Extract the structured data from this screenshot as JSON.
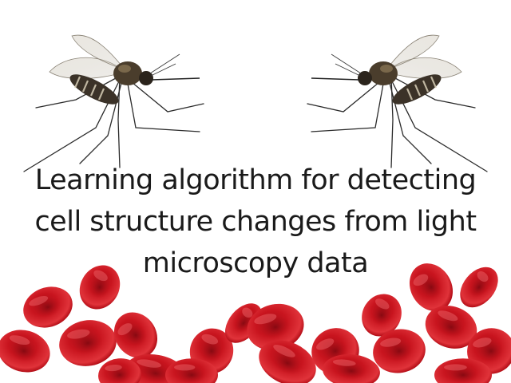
{
  "slide": {
    "title_lines": [
      "Learning algorithm for detecting",
      "cell structure changes from light",
      "microscopy data"
    ]
  },
  "images": {
    "left": "mosquito-left",
    "right": "mosquito-right",
    "bottom": "red-blood-cells"
  },
  "colors": {
    "background": "#ffffff",
    "title_text": "#1a1a1a",
    "cell_dark": "#8e0a12",
    "cell_mid": "#c4141e",
    "cell_light": "#e8464c"
  }
}
